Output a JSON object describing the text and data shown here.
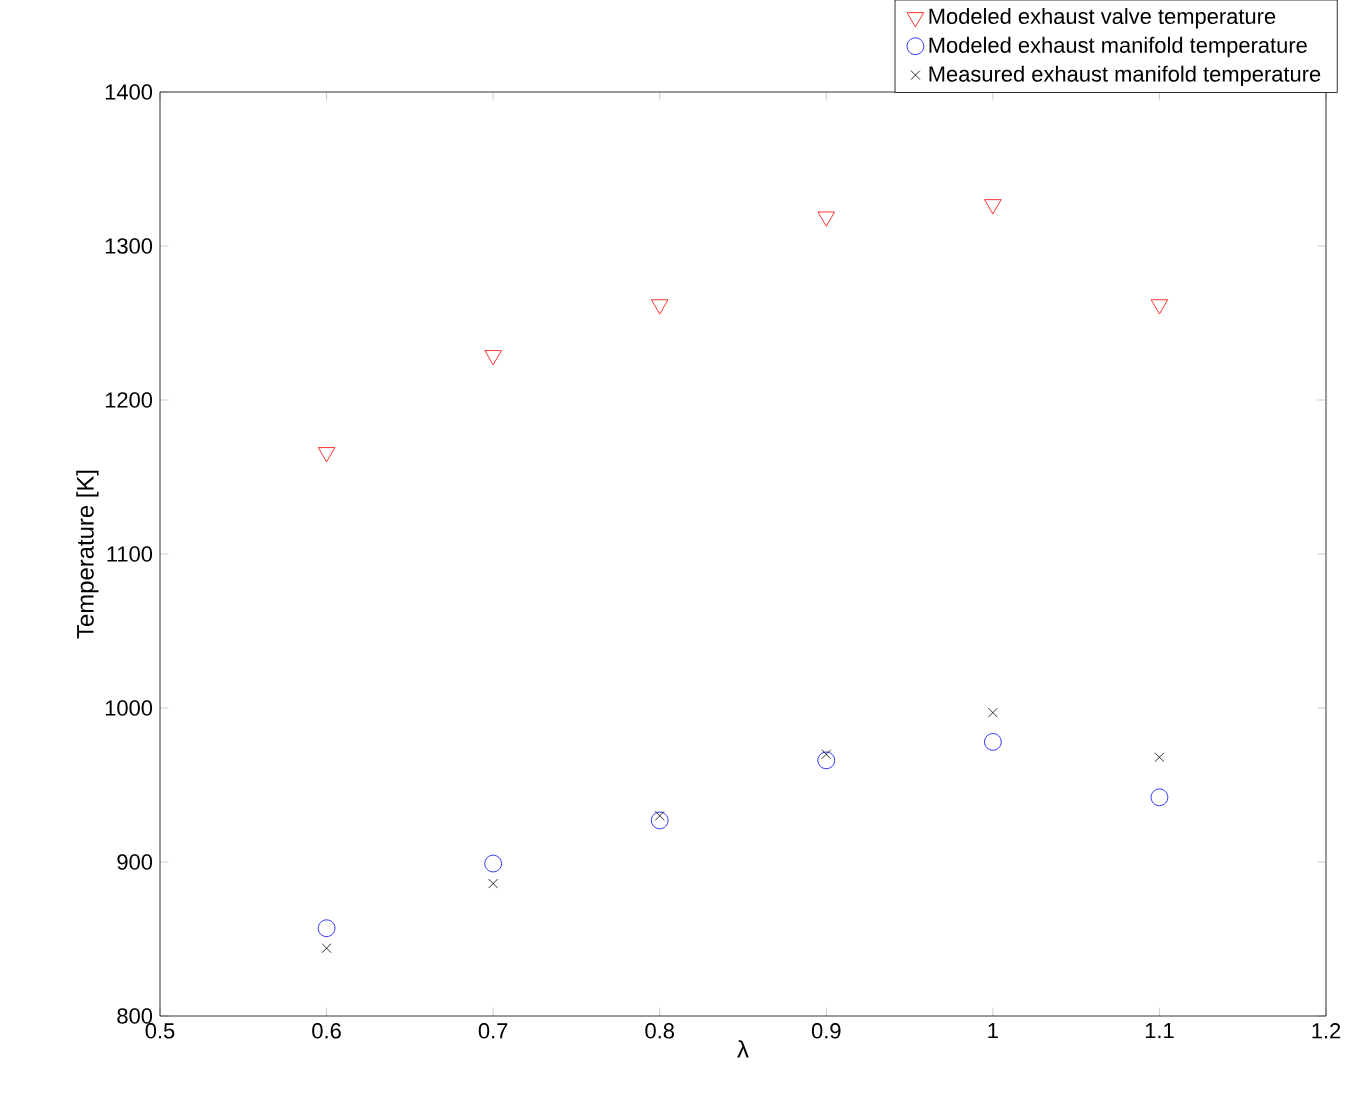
{
  "chart_data": {
    "type": "scatter",
    "xlabel": "λ",
    "ylabel": "Temperature [K]",
    "x": [
      0.6,
      0.7,
      0.8,
      0.9,
      1.0,
      1.1
    ],
    "series": [
      {
        "name": "Modeled exhaust valve temperature",
        "color": "#ff0000",
        "marker": "triangle",
        "values": [
          1166,
          1229,
          1262,
          1319,
          1327,
          1262
        ]
      },
      {
        "name": "Modeled exhaust manifold temperature",
        "color": "#0000ff",
        "marker": "circle",
        "values": [
          857,
          899,
          927,
          966,
          978,
          942
        ]
      },
      {
        "name": "Measured exhaust manifold temperature",
        "color": "#000000",
        "marker": "cross",
        "values": [
          844,
          886,
          930,
          970,
          997,
          968
        ]
      }
    ],
    "xlim": [
      0.5,
      1.2
    ],
    "xticks": [
      0.5,
      0.6,
      0.7,
      0.8,
      0.9,
      1,
      1.1,
      1.2
    ],
    "ylim": [
      800,
      1400
    ],
    "yticks": [
      800,
      900,
      1000,
      1100,
      1200,
      1300,
      1400
    ],
    "grid": false,
    "legend": "top right"
  }
}
